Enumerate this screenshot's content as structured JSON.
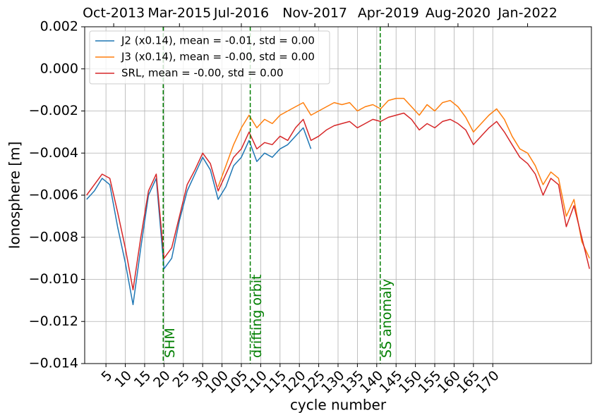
{
  "chart_data": {
    "type": "line",
    "ylabel": "Ionosphere [m]",
    "xlabel": "cycle number",
    "xlim": [
      -0.5,
      130.5
    ],
    "ylim": [
      -0.014,
      0.002
    ],
    "yticks": [
      0.002,
      {
        "value": 0,
        "label": "0.000"
      },
      {
        "value": -0.002,
        "label": "−0.002"
      },
      {
        "value": -0.004,
        "label": "−0.004"
      },
      {
        "value": -0.006,
        "label": "−0.006"
      },
      {
        "value": -0.008,
        "label": "−0.008"
      },
      {
        "value": -0.01,
        "label": "−0.010"
      },
      {
        "value": -0.012,
        "label": "−0.012"
      },
      {
        "value": -0.014,
        "label": "−0.014"
      }
    ],
    "xticks": [
      5,
      10,
      15,
      20,
      25,
      30,
      {
        "value": 35,
        "label": "100"
      },
      {
        "value": 40,
        "label": "105"
      },
      {
        "value": 45,
        "label": "110"
      },
      {
        "value": 50,
        "label": "115"
      },
      {
        "value": 55,
        "label": "120"
      },
      {
        "value": 60,
        "label": "125"
      },
      {
        "value": 65,
        "label": "130"
      },
      {
        "value": 70,
        "label": "135"
      },
      {
        "value": 75,
        "label": "140"
      },
      {
        "value": 80,
        "label": "145"
      },
      {
        "value": 85,
        "label": "150"
      },
      {
        "value": 90,
        "label": "155"
      },
      {
        "value": 95,
        "label": "160"
      },
      {
        "value": 100,
        "label": "165"
      },
      {
        "value": 105,
        "label": "170"
      }
    ],
    "x2ticks": [
      {
        "value": 7,
        "label": "Oct-2013"
      },
      {
        "value": 24,
        "label": "Mar-2015"
      },
      {
        "value": 40,
        "label": "Jul-2016"
      },
      {
        "value": 59,
        "label": "Nov-2017"
      },
      {
        "value": 78,
        "label": "Apr-2019"
      },
      {
        "value": 96,
        "label": "Aug-2020"
      },
      {
        "value": 114,
        "label": "Jan-2022"
      }
    ],
    "grid": true,
    "legend": "upper left",
    "annotations": [
      {
        "label": "SHM",
        "x": 19.8
      },
      {
        "label": "drifting orbit",
        "x": 42.3
      },
      {
        "label": "SS anomaly",
        "x": 75.9
      }
    ],
    "annotation_color": "#007f00",
    "x": [
      0,
      2,
      4,
      6,
      8,
      10,
      12,
      14,
      16,
      18,
      20,
      22,
      24,
      26,
      28,
      30,
      32,
      34,
      36,
      38,
      40,
      42,
      44,
      46,
      48,
      50,
      52,
      54,
      56,
      58,
      60,
      62,
      64,
      66,
      68,
      70,
      72,
      74,
      76,
      78,
      80,
      82,
      84,
      86,
      88,
      90,
      92,
      94,
      96,
      98,
      100,
      102,
      104,
      106,
      108,
      110,
      112,
      114,
      116,
      118,
      120,
      122,
      124,
      126,
      128,
      130
    ],
    "series": [
      {
        "name": "J2 (x0.14), mean = -0.01, std = 0.00",
        "color": "#1f77b4",
        "values": [
          -0.0062,
          -0.0058,
          -0.0052,
          -0.0055,
          -0.0075,
          -0.0092,
          -0.0112,
          -0.0085,
          -0.006,
          -0.0052,
          -0.0095,
          -0.009,
          -0.0072,
          -0.0058,
          -0.005,
          -0.0042,
          -0.0048,
          -0.0062,
          -0.0056,
          -0.0046,
          -0.0042,
          -0.0034,
          -0.0044,
          -0.004,
          -0.0042,
          -0.0038,
          -0.0036,
          -0.0032,
          -0.0028,
          -0.0038,
          null,
          null,
          null,
          null,
          null,
          null,
          null,
          null,
          null,
          null,
          null,
          null,
          null,
          null,
          null,
          null,
          null,
          null,
          null,
          null,
          null,
          null,
          null,
          null,
          null,
          null,
          null,
          null,
          null,
          null,
          null,
          null,
          null,
          null,
          null,
          null
        ]
      },
      {
        "name": "J3 (x0.14), mean = -0.00, std = 0.00",
        "color": "#ff7f0e",
        "values": [
          null,
          null,
          null,
          null,
          null,
          null,
          null,
          null,
          null,
          null,
          null,
          null,
          null,
          null,
          null,
          null,
          null,
          -0.0056,
          -0.0046,
          -0.0036,
          -0.0028,
          -0.0022,
          -0.0028,
          -0.0024,
          -0.0026,
          -0.0022,
          -0.002,
          -0.0018,
          -0.0016,
          -0.0022,
          -0.002,
          -0.0018,
          -0.0016,
          -0.0017,
          -0.0016,
          -0.002,
          -0.0018,
          -0.0017,
          -0.0019,
          -0.0015,
          -0.0014,
          -0.0014,
          -0.0018,
          -0.0022,
          -0.0017,
          -0.002,
          -0.0016,
          -0.0015,
          -0.0018,
          -0.0023,
          -0.003,
          -0.0026,
          -0.0022,
          -0.0019,
          -0.0024,
          -0.0032,
          -0.0038,
          -0.004,
          -0.0046,
          -0.0055,
          -0.0049,
          -0.0052,
          -0.007,
          -0.0062,
          -0.0082,
          -0.009
        ]
      },
      {
        "name": "SRL, mean = -0.00, std = 0.00",
        "color": "#d62728",
        "values": [
          -0.006,
          -0.0055,
          -0.005,
          -0.0052,
          -0.0068,
          -0.0085,
          -0.0105,
          -0.008,
          -0.0058,
          -0.005,
          -0.009,
          -0.0085,
          -0.007,
          -0.0055,
          -0.0048,
          -0.004,
          -0.0045,
          -0.0058,
          -0.005,
          -0.0042,
          -0.0038,
          -0.003,
          -0.0038,
          -0.0035,
          -0.0036,
          -0.0032,
          -0.0034,
          -0.0028,
          -0.0024,
          -0.0034,
          -0.0032,
          -0.0029,
          -0.0027,
          -0.0026,
          -0.0025,
          -0.0028,
          -0.0026,
          -0.0024,
          -0.0025,
          -0.0023,
          -0.0022,
          -0.0021,
          -0.0024,
          -0.0029,
          -0.0026,
          -0.0028,
          -0.0025,
          -0.0024,
          -0.0026,
          -0.0029,
          -0.0036,
          -0.0032,
          -0.0028,
          -0.0025,
          -0.003,
          -0.0036,
          -0.0042,
          -0.0045,
          -0.005,
          -0.006,
          -0.0052,
          -0.0055,
          -0.0075,
          -0.0065,
          -0.008,
          -0.0095
        ]
      }
    ]
  }
}
